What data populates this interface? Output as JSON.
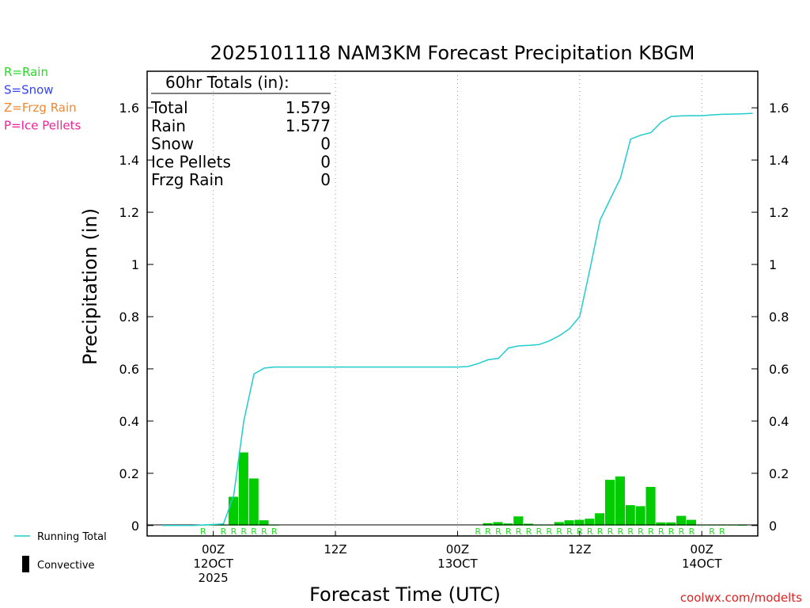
{
  "chart_data": {
    "type": "bar",
    "title": "2025101118 NAM3KM Forecast Precipitation KBGM",
    "xlabel": "Forecast Time (UTC)",
    "ylabel": "Precipitation (in)",
    "credit": "coolwx.com/modelts",
    "ylim": [
      -0.04,
      1.74
    ],
    "xlim": [
      -6.5,
      53.5
    ],
    "yticks": [
      {
        "value": 0,
        "label": "0"
      },
      {
        "value": 0.2,
        "label": "0.2"
      },
      {
        "value": 0.4,
        "label": "0.4"
      },
      {
        "value": 0.6,
        "label": "0.6"
      },
      {
        "value": 0.8,
        "label": "0.8"
      },
      {
        "value": 1.0,
        "label": "1"
      },
      {
        "value": 1.2,
        "label": "1.2"
      },
      {
        "value": 1.4,
        "label": "1.4"
      },
      {
        "value": 1.6,
        "label": "1.6"
      }
    ],
    "xticks": [
      {
        "hour": 0,
        "line1": "00Z",
        "line2": "12OCT",
        "line3": "2025"
      },
      {
        "hour": 12,
        "line1": "12Z",
        "line2": "",
        "line3": ""
      },
      {
        "hour": 24,
        "line1": "00Z",
        "line2": "13OCT",
        "line3": ""
      },
      {
        "hour": 36,
        "line1": "12Z",
        "line2": "",
        "line3": ""
      },
      {
        "hour": 48,
        "line1": "00Z",
        "line2": "14OCT",
        "line3": ""
      }
    ],
    "legend": [
      {
        "label": "R=Rain",
        "color": "#22dd22"
      },
      {
        "label": "S=Snow",
        "color": "#3344ee"
      },
      {
        "label": "Z=Frzg Rain",
        "color": "#ee8833"
      },
      {
        "label": "P=Ice Pellets",
        "color": "#ee2299"
      }
    ],
    "legend_bottom": {
      "running_total": "Running Total",
      "convective": "Convective"
    },
    "totals": {
      "header": "60hr Totals (in):",
      "rows": [
        {
          "label": "Total",
          "value": "1.579"
        },
        {
          "label": "Rain",
          "value": "1.577"
        },
        {
          "label": "Snow",
          "value": "0"
        },
        {
          "label": "Ice Pellets",
          "value": "0"
        },
        {
          "label": "Frzg Rain",
          "value": "0"
        }
      ]
    },
    "colors": {
      "bar": "#00cc00",
      "running_total": "#22cccc",
      "ptype_rain": "#22dd22"
    },
    "series": [
      {
        "name": "Hourly Precipitation",
        "hours": [
          -5,
          -4,
          -3,
          -2,
          -1,
          0,
          1,
          2,
          3,
          4,
          5,
          6,
          7,
          8,
          9,
          10,
          11,
          12,
          13,
          14,
          15,
          16,
          17,
          18,
          19,
          20,
          21,
          22,
          23,
          24,
          25,
          26,
          27,
          28,
          29,
          30,
          31,
          32,
          33,
          34,
          35,
          36,
          37,
          38,
          39,
          40,
          41,
          42,
          43,
          44,
          45,
          46,
          47,
          48,
          49,
          50,
          51,
          52,
          53
        ],
        "values": [
          0,
          0,
          0,
          0,
          0.002,
          0.002,
          0.002,
          0.11,
          0.28,
          0.18,
          0.02,
          0.002,
          0,
          0,
          0,
          0,
          0,
          0,
          0,
          0,
          0,
          0,
          0,
          0,
          0,
          0,
          0,
          0,
          0,
          0,
          0,
          0,
          0.009,
          0.013,
          0.008,
          0.035,
          0.007,
          0.002,
          0.003,
          0.013,
          0.02,
          0.022,
          0.026,
          0.047,
          0.175,
          0.188,
          0.078,
          0.074,
          0.148,
          0.012,
          0.012,
          0.037,
          0.022,
          0.002,
          0.002,
          0.002,
          0.003,
          0.001,
          0
        ]
      },
      {
        "name": "Running Total",
        "hours": [
          -5,
          -4,
          -3,
          -2,
          -1,
          0,
          1,
          2,
          3,
          4,
          5,
          6,
          7,
          8,
          9,
          10,
          11,
          12,
          13,
          14,
          15,
          16,
          17,
          18,
          19,
          20,
          21,
          22,
          23,
          24,
          25,
          26,
          27,
          28,
          29,
          30,
          31,
          32,
          33,
          34,
          35,
          36,
          37,
          38,
          39,
          40,
          41,
          42,
          43,
          44,
          45,
          46,
          47,
          48,
          49,
          50,
          51,
          52,
          53
        ],
        "values": [
          0,
          0,
          0,
          0,
          0.002,
          0.004,
          0.006,
          0.115,
          0.4,
          0.58,
          0.603,
          0.607,
          0.607,
          0.607,
          0.607,
          0.607,
          0.607,
          0.607,
          0.607,
          0.607,
          0.607,
          0.607,
          0.607,
          0.607,
          0.607,
          0.607,
          0.607,
          0.607,
          0.607,
          0.607,
          0.609,
          0.62,
          0.635,
          0.64,
          0.68,
          0.688,
          0.69,
          0.693,
          0.707,
          0.727,
          0.754,
          0.8,
          0.98,
          1.17,
          1.25,
          1.33,
          1.48,
          1.495,
          1.505,
          1.545,
          1.567,
          1.569,
          1.57,
          1.57,
          1.573,
          1.575,
          1.576,
          1.577,
          1.579
        ]
      }
    ],
    "ptype_labels": {
      "text": "R",
      "hours": [
        -1,
        1,
        2,
        3,
        4,
        5,
        6,
        26,
        27,
        28,
        29,
        30,
        31,
        32,
        33,
        34,
        35,
        36,
        37,
        38,
        39,
        40,
        41,
        42,
        43,
        44,
        45,
        46,
        47,
        49,
        50
      ]
    }
  }
}
